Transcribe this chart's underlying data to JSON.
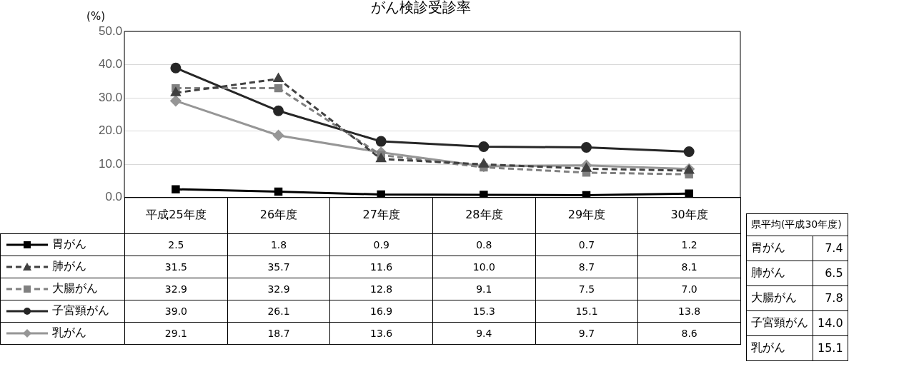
{
  "chart_data": {
    "type": "line",
    "title": "がん検診受診率",
    "ylabel": "(%)",
    "categories": [
      "平成25年度",
      "26年度",
      "27年度",
      "28年度",
      "29年度",
      "30年度"
    ],
    "series": [
      {
        "name": "胃がん",
        "color": "#000000",
        "values": [
          2.5,
          1.8,
          0.9,
          0.8,
          0.7,
          1.2
        ],
        "value_labels": [
          "2.5",
          "1.8",
          "0.9",
          "0.8",
          "0.7",
          "1.2"
        ],
        "marker": "square",
        "line_style": "solid"
      },
      {
        "name": "肺がん",
        "color": "#404040",
        "values": [
          31.5,
          35.7,
          11.6,
          10.0,
          8.7,
          8.1
        ],
        "value_labels": [
          "31.5",
          "35.7",
          "11.6",
          "10.0",
          "8.7",
          "8.1"
        ],
        "marker": "triangle",
        "line_style": "dashed"
      },
      {
        "name": "大腸がん",
        "color": "#808080",
        "values": [
          32.9,
          32.9,
          12.8,
          9.1,
          7.5,
          7.0
        ],
        "value_labels": [
          "32.9",
          "32.9",
          "12.8",
          "9.1",
          "7.5",
          "7.0"
        ],
        "marker": "square",
        "line_style": "dashed"
      },
      {
        "name": "子宮頸がん",
        "color": "#262626",
        "values": [
          39.0,
          26.1,
          16.9,
          15.3,
          15.1,
          13.8
        ],
        "value_labels": [
          "39.0",
          "26.1",
          "16.9",
          "15.3",
          "15.1",
          "13.8"
        ],
        "marker": "circle",
        "line_style": "solid"
      },
      {
        "name": "乳がん",
        "color": "#969696",
        "values": [
          29.1,
          18.7,
          13.6,
          9.4,
          9.7,
          8.6
        ],
        "value_labels": [
          "29.1",
          "18.7",
          "13.6",
          "9.4",
          "9.7",
          "8.6"
        ],
        "marker": "diamond",
        "line_style": "solid"
      }
    ],
    "ylim": [
      0,
      50
    ],
    "yticks": [
      {
        "value": 0,
        "label": "0.0"
      },
      {
        "value": 10,
        "label": "10.0"
      },
      {
        "value": 20,
        "label": "20.0"
      },
      {
        "value": 30,
        "label": "30.0"
      },
      {
        "value": 40,
        "label": "40.0"
      },
      {
        "value": 50,
        "label": "50.0"
      }
    ],
    "grid": "y",
    "legend": "bottom left",
    "annotations": [
      "県平均(平成30年度)",
      "胃がん",
      "7.4",
      "肺がん",
      "6.5",
      "大腸がん",
      "7.8",
      "子宮頸がん",
      "14.0",
      "乳がん",
      "15.1"
    ]
  }
}
